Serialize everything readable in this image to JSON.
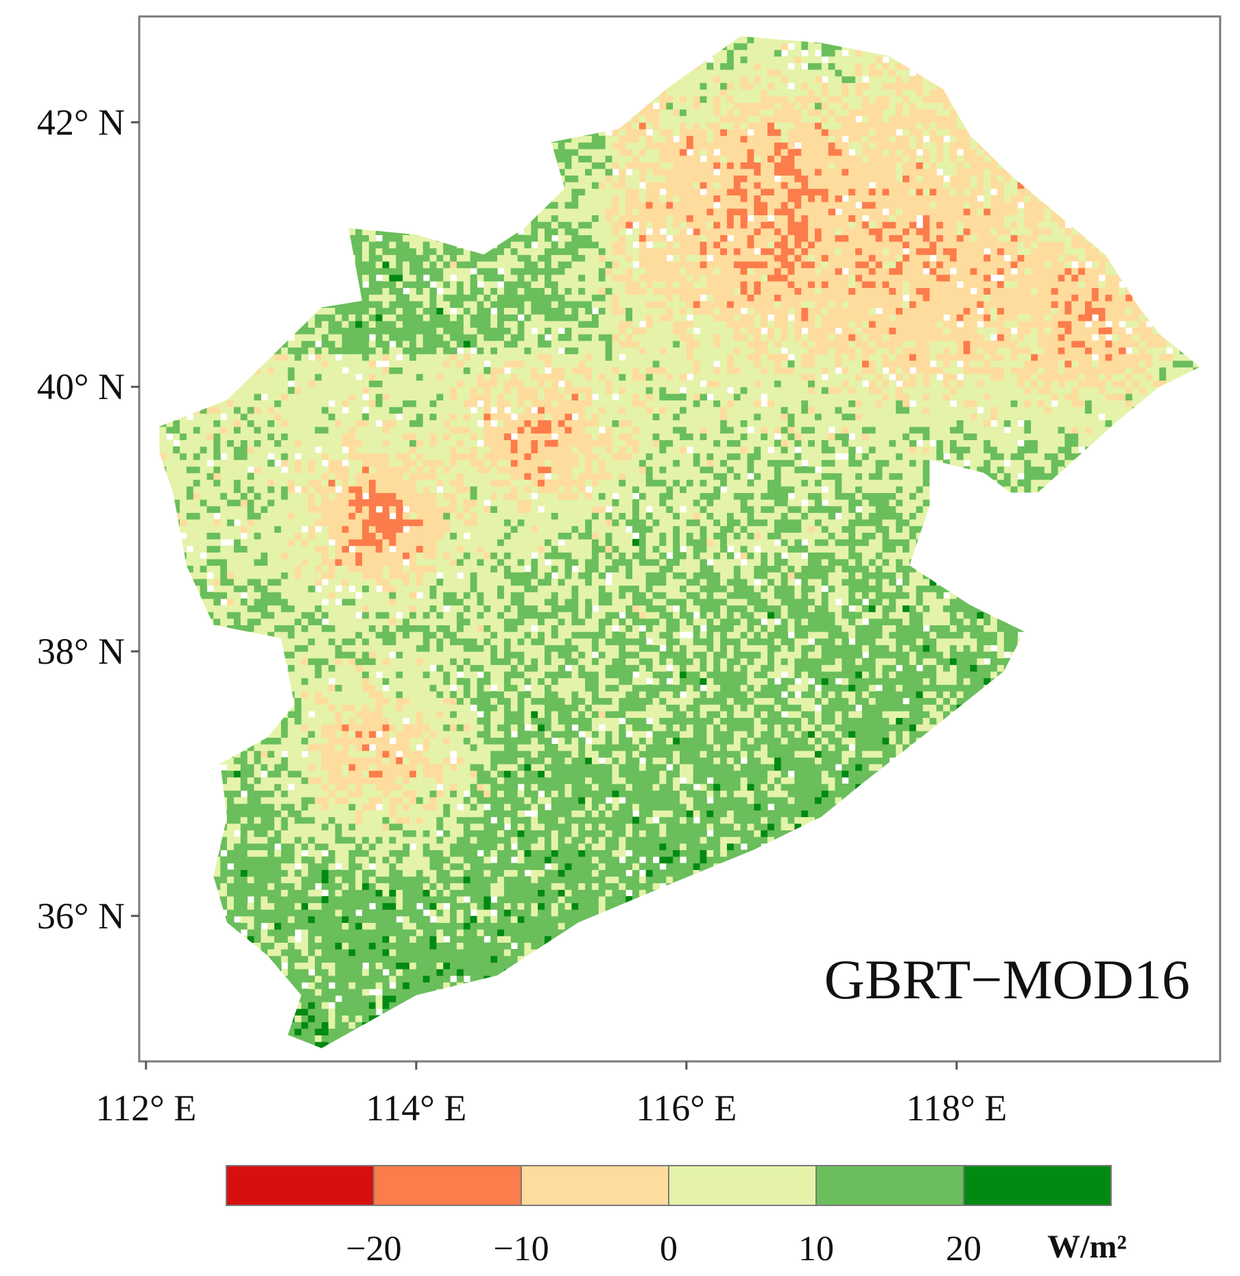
{
  "chart_data": {
    "type": "heatmap",
    "title": "",
    "panel_label": "GBRT−MOD16",
    "xlim": [
      111.95,
      119.95
    ],
    "ylim": [
      34.9,
      42.8
    ],
    "x_ticks": [
      {
        "value": 112,
        "label": "112° E"
      },
      {
        "value": 114,
        "label": "114° E"
      },
      {
        "value": 116,
        "label": "116° E"
      },
      {
        "value": 118,
        "label": "118° E"
      }
    ],
    "y_ticks": [
      {
        "value": 42,
        "label": "42° N"
      },
      {
        "value": 40,
        "label": "40° N"
      },
      {
        "value": 38,
        "label": "38° N"
      },
      {
        "value": 36,
        "label": "36° N"
      }
    ],
    "colorbar": {
      "unit": "W/m²",
      "colors": [
        "#d7100f",
        "#fc7c4b",
        "#fedc9d",
        "#e4f3a9",
        "#6abe5b",
        "#008a13"
      ],
      "bounds": [
        -30,
        -20,
        -10,
        0,
        10,
        20,
        30
      ],
      "tick_values": [
        -20,
        -10,
        0,
        10,
        20
      ],
      "tick_labels": [
        "−20",
        "−10",
        "0",
        "10",
        "20"
      ]
    },
    "region_outline_lonlat": [
      [
        112.1,
        39.7
      ],
      [
        112.6,
        39.9
      ],
      [
        113.0,
        40.3
      ],
      [
        113.3,
        40.6
      ],
      [
        113.6,
        40.65
      ],
      [
        113.5,
        41.2
      ],
      [
        114.0,
        41.15
      ],
      [
        114.5,
        41.0
      ],
      [
        114.8,
        41.2
      ],
      [
        115.1,
        41.5
      ],
      [
        115.0,
        41.85
      ],
      [
        115.5,
        41.95
      ],
      [
        115.85,
        42.25
      ],
      [
        116.4,
        42.65
      ],
      [
        117.0,
        42.6
      ],
      [
        117.5,
        42.5
      ],
      [
        117.9,
        42.25
      ],
      [
        118.1,
        41.9
      ],
      [
        118.4,
        41.6
      ],
      [
        118.75,
        41.3
      ],
      [
        119.1,
        41.0
      ],
      [
        119.35,
        40.6
      ],
      [
        119.5,
        40.4
      ],
      [
        119.8,
        40.15
      ],
      [
        119.5,
        40.0
      ],
      [
        119.2,
        39.75
      ],
      [
        118.6,
        39.2
      ],
      [
        118.4,
        39.2
      ],
      [
        118.2,
        39.35
      ],
      [
        117.8,
        39.45
      ],
      [
        117.8,
        39.1
      ],
      [
        117.65,
        38.65
      ],
      [
        118.1,
        38.35
      ],
      [
        118.5,
        38.15
      ],
      [
        118.35,
        37.85
      ],
      [
        117.8,
        37.4
      ],
      [
        117.3,
        37.0
      ],
      [
        117.0,
        36.75
      ],
      [
        116.5,
        36.5
      ],
      [
        115.9,
        36.25
      ],
      [
        115.2,
        35.95
      ],
      [
        114.6,
        35.55
      ],
      [
        114.0,
        35.4
      ],
      [
        113.3,
        35.0
      ],
      [
        113.05,
        35.1
      ],
      [
        113.15,
        35.4
      ],
      [
        112.9,
        35.7
      ],
      [
        112.6,
        35.95
      ],
      [
        112.5,
        36.3
      ],
      [
        112.6,
        36.75
      ],
      [
        112.55,
        37.15
      ],
      [
        112.9,
        37.35
      ],
      [
        113.1,
        37.6
      ],
      [
        113.0,
        38.1
      ],
      [
        112.5,
        38.2
      ],
      [
        112.3,
        38.65
      ],
      [
        112.2,
        39.2
      ],
      [
        112.1,
        39.5
      ]
    ],
    "hotspots": [
      {
        "lon": 113.7,
        "lat": 38.95,
        "radius_deg": 0.5,
        "value": -14
      },
      {
        "lon": 114.9,
        "lat": 39.6,
        "radius_deg": 0.55,
        "value": -9
      },
      {
        "lon": 116.6,
        "lat": 41.3,
        "radius_deg": 1.1,
        "value": -10
      },
      {
        "lon": 117.9,
        "lat": 40.9,
        "radius_deg": 1.0,
        "value": -7
      },
      {
        "lon": 119.0,
        "lat": 40.45,
        "radius_deg": 0.6,
        "value": -8
      },
      {
        "lon": 113.7,
        "lat": 37.2,
        "radius_deg": 0.6,
        "value": -6
      }
    ]
  }
}
